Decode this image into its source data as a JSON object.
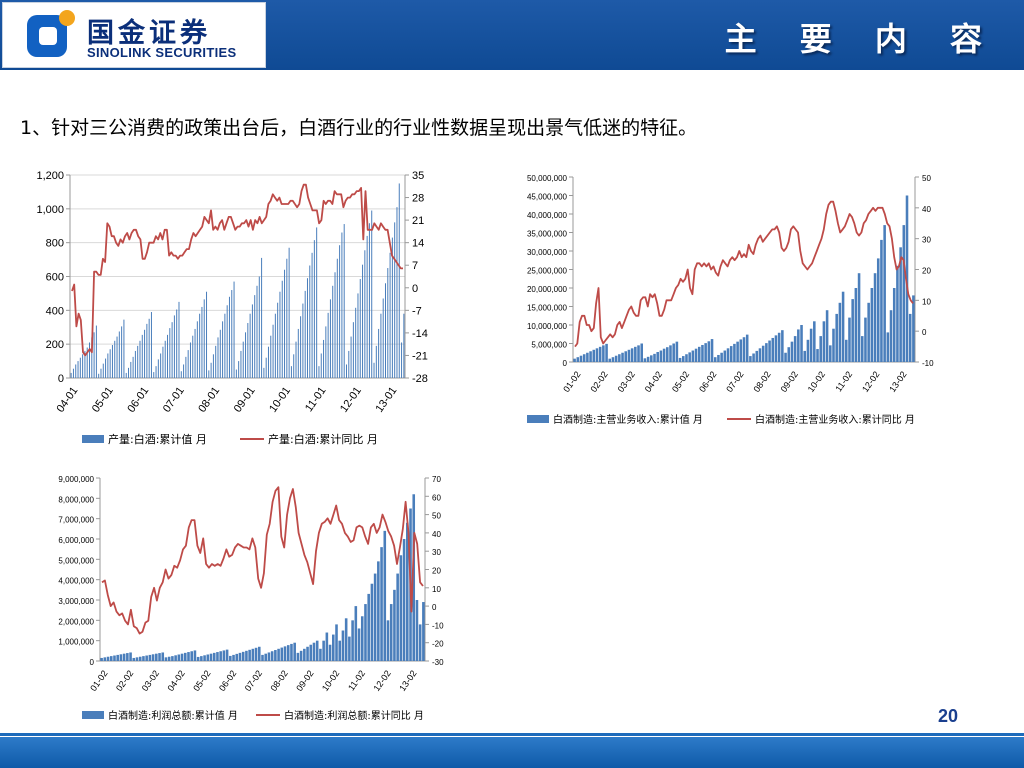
{
  "header": {
    "logo_cn": "国金证券",
    "logo_en": "SINOLINK SECURITIES",
    "title": "主 要 内 容"
  },
  "subtitle": "1、针对三公消费的政策出台后，白酒行业的行业性数据呈现出景气低迷的特征。",
  "page_number": "20",
  "colors": {
    "bar": "#4a7ebb",
    "line": "#be4b48",
    "header": "#1a56a4",
    "logo": "#1261c2"
  },
  "chart_data": [
    {
      "type": "bar+line",
      "x_tick_labels": [
        "04-01",
        "05-01",
        "06-01",
        "07-01",
        "08-01",
        "09-01",
        "10-01",
        "11-01",
        "12-01",
        "13-01"
      ],
      "ylim_left": [
        0,
        1200
      ],
      "yticks_left": [
        "0",
        "200",
        "400",
        "600",
        "800",
        "1,000",
        "1,200"
      ],
      "ylim_right": [
        -28,
        35
      ],
      "yticks_right": [
        "-28",
        "-21",
        "-14",
        "-7",
        "0",
        "7",
        "14",
        "21",
        "28",
        "35"
      ],
      "legend": [
        "产量:白酒:累计值 月",
        "产量:白酒:累计同比 月"
      ],
      "bar_series": [
        [
          30,
          55,
          80,
          100,
          120,
          140,
          160,
          180,
          210,
          240,
          270,
          310
        ],
        [
          25,
          55,
          85,
          115,
          145,
          170,
          195,
          220,
          245,
          275,
          305,
          345
        ],
        [
          30,
          60,
          95,
          125,
          160,
          190,
          220,
          255,
          285,
          320,
          350,
          390
        ],
        [
          35,
          70,
          110,
          145,
          185,
          220,
          255,
          295,
          330,
          370,
          405,
          450
        ],
        [
          40,
          80,
          125,
          165,
          210,
          250,
          290,
          335,
          380,
          420,
          465,
          510
        ],
        [
          45,
          90,
          140,
          190,
          240,
          285,
          335,
          380,
          430,
          480,
          520,
          570
        ],
        [
          50,
          100,
          160,
          215,
          270,
          325,
          380,
          435,
          490,
          545,
          600,
          710
        ],
        [
          60,
          120,
          185,
          250,
          315,
          380,
          445,
          510,
          575,
          640,
          705,
          770
        ],
        [
          70,
          140,
          215,
          290,
          365,
          440,
          515,
          590,
          665,
          740,
          815,
          890
        ],
        [
          70,
          145,
          225,
          305,
          385,
          465,
          545,
          625,
          705,
          785,
          860,
          910
        ],
        [
          80,
          160,
          245,
          330,
          415,
          500,
          585,
          670,
          755,
          840,
          915,
          990
        ],
        [
          90,
          190,
          290,
          380,
          470,
          560,
          650,
          740,
          830,
          920,
          1010,
          1150
        ],
        [
          210,
          380
        ]
      ],
      "line_values": [
        -1,
        1,
        -12,
        -8,
        -10,
        -20,
        -21,
        -20,
        -19,
        -20,
        5,
        5,
        4,
        4,
        9,
        8,
        20,
        19,
        16,
        16,
        14,
        13,
        15,
        14,
        16,
        17,
        15,
        17,
        18,
        18,
        16,
        15,
        9,
        9,
        11,
        14,
        14,
        14,
        16,
        15,
        17,
        15,
        18,
        18,
        10,
        11,
        10,
        10,
        9,
        10,
        10,
        11,
        12,
        12,
        15,
        17,
        16,
        17,
        18,
        19,
        22,
        21,
        20,
        24,
        18,
        19,
        18,
        20,
        21,
        18,
        20,
        22,
        22,
        20,
        18,
        19,
        19,
        20,
        20,
        21,
        19,
        21,
        18,
        21,
        20,
        22,
        20,
        21,
        22,
        26,
        27,
        29,
        28,
        27,
        28,
        26,
        26,
        26,
        26,
        27,
        27,
        26,
        25,
        26,
        30,
        32,
        32,
        28,
        26,
        24,
        24,
        24,
        20,
        21,
        27,
        26,
        27,
        27,
        26,
        30,
        29,
        29,
        29,
        25,
        27,
        28,
        28,
        29,
        29,
        30,
        30,
        31,
        15,
        30,
        18,
        18,
        18,
        20,
        19,
        18,
        20,
        19,
        18,
        18,
        14,
        10,
        9,
        8,
        7,
        6,
        6
      ],
      "x_gridlines": false,
      "y_gridlines": true
    },
    {
      "type": "bar+line",
      "x_tick_labels": [
        "01-02",
        "02-02",
        "03-02",
        "04-02",
        "05-02",
        "06-02",
        "07-02",
        "08-02",
        "09-02",
        "10-02",
        "11-02",
        "12-02",
        "13-02"
      ],
      "ylim_left": [
        0,
        50000000
      ],
      "yticks_left": [
        "0",
        "5,000,000",
        "10,000,000",
        "15,000,000",
        "20,000,000",
        "25,000,000",
        "30,000,000",
        "35,000,000",
        "40,000,000",
        "45,000,000",
        "50,000,000"
      ],
      "ylim_right": [
        -10,
        50
      ],
      "yticks_right": [
        "-10",
        "0",
        "10",
        "20",
        "30",
        "40",
        "50"
      ],
      "legend": [
        "白酒制造:主营业务收入:累计值 月",
        "白酒制造:主营业务收入:累计同比 月"
      ],
      "bar_series": [
        [
          900000,
          1300000,
          1700000,
          2100000,
          2500000,
          2900000,
          3300000,
          3700000,
          4100000,
          4500000,
          4900000
        ],
        [
          900000,
          1300000,
          1700000,
          2100000,
          2500000,
          2900000,
          3300000,
          3700000,
          4100000,
          4500000,
          5000000
        ],
        [
          1000000,
          1400000,
          1800000,
          2200000,
          2700000,
          3100000,
          3600000,
          4000000,
          4500000,
          5000000,
          5500000
        ],
        [
          1100000,
          1600000,
          2100000,
          2600000,
          3100000,
          3600000,
          4100000,
          4600000,
          5100000,
          5600000,
          6200000
        ],
        [
          1300000,
          1900000,
          2500000,
          3100000,
          3700000,
          4300000,
          4900000,
          5500000,
          6100000,
          6700000,
          7400000
        ],
        [
          1600000,
          2300000,
          3000000,
          3700000,
          4400000,
          5100000,
          5800000,
          6500000,
          7200000,
          7900000,
          8600000
        ],
        [
          2500000,
          4000000,
          5500000,
          7000000,
          8800000,
          10000000
        ],
        [
          3000000,
          6000000,
          9000000,
          11000000
        ],
        [
          3500000,
          7000000,
          11000000,
          14000000
        ],
        [
          4500000,
          9000000,
          13000000,
          16000000,
          19000000
        ],
        [
          6000000,
          12000000,
          17000000,
          20000000,
          24000000
        ],
        [
          7000000,
          12000000,
          16000000,
          20000000,
          24000000,
          28000000,
          33000000,
          37000000
        ],
        [
          8000000,
          14000000,
          20000000,
          26000000,
          31000000,
          37000000,
          45000000
        ],
        [
          13000000,
          18000000
        ]
      ],
      "line_values": [
        -5,
        -4,
        3,
        5,
        5,
        2,
        2,
        0,
        1,
        9,
        14,
        -2,
        -4,
        -3,
        -2,
        -1,
        -2,
        -1,
        2,
        3,
        1,
        3,
        5,
        7,
        8,
        6,
        5,
        5,
        10,
        11,
        11,
        8,
        12,
        11,
        12,
        9,
        5,
        5,
        7,
        10,
        10,
        10,
        12,
        14,
        15,
        17,
        16,
        17,
        20,
        14,
        12,
        20,
        22,
        22,
        21,
        22,
        21,
        22,
        20,
        21,
        19,
        18,
        21,
        23,
        22,
        21,
        23,
        24,
        23,
        24,
        26,
        24,
        25,
        24,
        28,
        26,
        25,
        28,
        30,
        31,
        29,
        30,
        31,
        32,
        33,
        33,
        34,
        32,
        27,
        26,
        27,
        29,
        33,
        34,
        33,
        32,
        26,
        22,
        21,
        20,
        21,
        22,
        24,
        26,
        28,
        30,
        33,
        38,
        41,
        42,
        42,
        39,
        35,
        32,
        33,
        34,
        36,
        38,
        37,
        35,
        32,
        31,
        32,
        35,
        36,
        38,
        39,
        40,
        39,
        40,
        40,
        40,
        38,
        35,
        34,
        30,
        24,
        20,
        21,
        24,
        23,
        17,
        12,
        10,
        9
      ]
    },
    {
      "type": "bar+line",
      "x_tick_labels": [
        "01-02",
        "02-02",
        "03-02",
        "04-02",
        "05-02",
        "06-02",
        "07-02",
        "08-02",
        "09-02",
        "10-02",
        "11-02",
        "12-02",
        "13-02"
      ],
      "ylim_left": [
        0,
        9000000
      ],
      "yticks_left": [
        "0",
        "1,000,000",
        "2,000,000",
        "3,000,000",
        "4,000,000",
        "5,000,000",
        "6,000,000",
        "7,000,000",
        "8,000,000",
        "9,000,000"
      ],
      "ylim_right": [
        -30,
        70
      ],
      "yticks_right": [
        "-30",
        "-20",
        "-10",
        "0",
        "10",
        "20",
        "30",
        "40",
        "50",
        "60",
        "70"
      ],
      "legend": [
        "白酒制造:利润总额:累计值 月",
        "白酒制造:利润总额:累计同比 月"
      ],
      "bar_series": [
        [
          150000,
          180000,
          210000,
          240000,
          270000,
          300000,
          330000,
          360000,
          390000,
          420000
        ],
        [
          150000,
          180000,
          210000,
          240000,
          270000,
          300000,
          330000,
          360000,
          390000,
          420000
        ],
        [
          180000,
          210000,
          240000,
          280000,
          320000,
          360000,
          400000,
          440000,
          480000,
          520000
        ],
        [
          200000,
          240000,
          280000,
          320000,
          360000,
          400000,
          440000,
          480000,
          520000,
          560000
        ],
        [
          250000,
          300000,
          350000,
          400000,
          450000,
          500000,
          550000,
          600000,
          650000,
          700000
        ],
        [
          300000,
          360000,
          420000,
          480000,
          540000,
          600000,
          660000,
          720000,
          780000,
          840000,
          900000
        ],
        [
          400000,
          500000,
          600000,
          700000,
          800000,
          900000,
          1000000
        ],
        [
          600000,
          1000000,
          1400000
        ],
        [
          800000,
          1300000,
          1800000
        ],
        [
          1000000,
          1500000,
          2100000
        ],
        [
          1200000,
          2000000,
          2700000
        ],
        [
          1600000,
          2200000,
          2800000,
          3300000,
          3800000,
          4300000,
          4900000,
          5600000,
          6400000
        ],
        [
          2000000,
          2800000,
          3500000,
          4300000,
          5200000,
          6000000,
          6800000,
          7500000
        ],
        [
          8200000,
          3000000,
          1800000,
          2900000
        ]
      ],
      "line_values": [
        13,
        14,
        6,
        0,
        2,
        -3,
        -5,
        -4,
        -8,
        -10,
        -2,
        -11,
        -12,
        -15,
        -14,
        -9,
        -8,
        5,
        10,
        3,
        10,
        13,
        20,
        15,
        17,
        22,
        21,
        25,
        31,
        33,
        43,
        47,
        47,
        33,
        29,
        37,
        23,
        21,
        23,
        22,
        23,
        22,
        26,
        31,
        27,
        28,
        32,
        34,
        33,
        32,
        32,
        31,
        37,
        32,
        15,
        10,
        18,
        39,
        45,
        57,
        63,
        65,
        38,
        32,
        50,
        59,
        64,
        54,
        40,
        34,
        28,
        24,
        18,
        12,
        30,
        40,
        45,
        46,
        48,
        45,
        50,
        55,
        47,
        45,
        40,
        38,
        35,
        36,
        43,
        44,
        43,
        38,
        34,
        43,
        45,
        40,
        43,
        50,
        46,
        41,
        38,
        33,
        23,
        32,
        42,
        57,
        40,
        -3,
        40,
        34,
        13,
        11
      ]
    }
  ]
}
